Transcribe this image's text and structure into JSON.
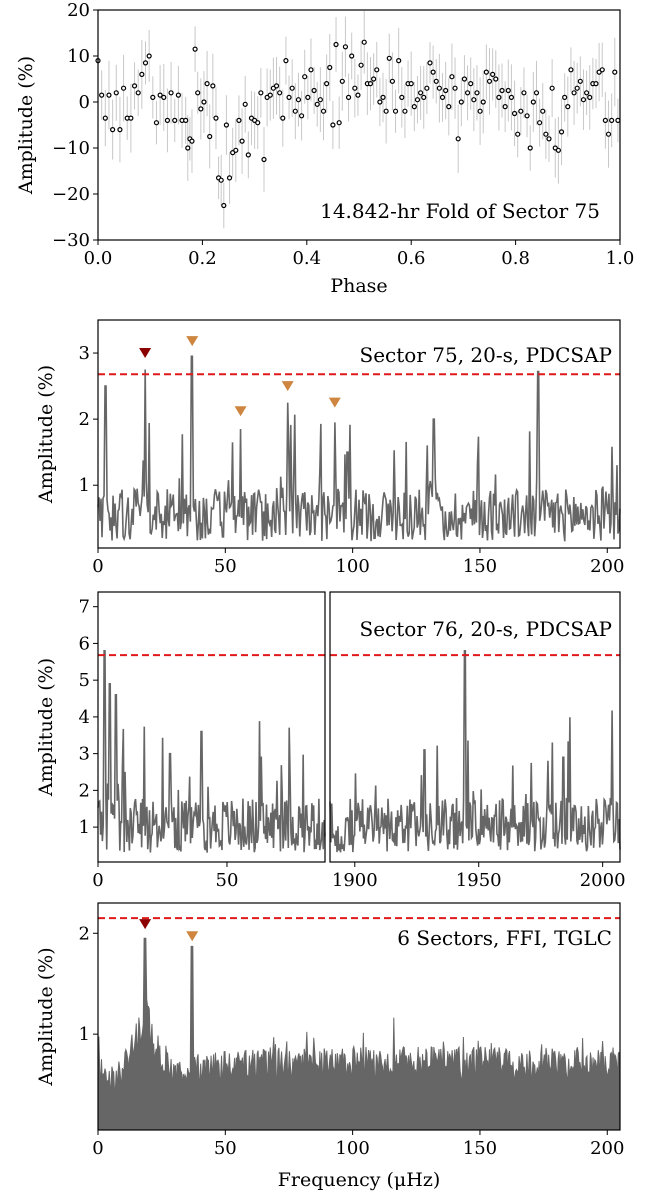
{
  "chart_data": [
    {
      "type": "scatter",
      "title": "14.842-hr Fold of Sector 75",
      "xlabel": "Phase",
      "ylabel": "Amplitude (%)",
      "xlim": [
        0.0,
        1.0
      ],
      "ylim": [
        -30,
        20
      ],
      "xticks": [
        "0.0",
        "0.2",
        "0.4",
        "0.6",
        "0.8",
        "1.0"
      ],
      "yticks": [
        "20",
        "10",
        "0",
        "−10",
        "−20",
        "−30"
      ],
      "marker": "open-circle",
      "errorbar_color": "#c8c8c8",
      "points": [
        [
          0.0,
          9
        ],
        [
          0.007,
          1.5
        ],
        [
          0.014,
          -3.5
        ],
        [
          0.021,
          1.5
        ],
        [
          0.028,
          -6
        ],
        [
          0.035,
          2
        ],
        [
          0.042,
          -6
        ],
        [
          0.049,
          3
        ],
        [
          0.056,
          -3.5
        ],
        [
          0.063,
          -3.5
        ],
        [
          0.07,
          3.5
        ],
        [
          0.077,
          2
        ],
        [
          0.084,
          6
        ],
        [
          0.091,
          8.5
        ],
        [
          0.098,
          10
        ],
        [
          0.105,
          1
        ],
        [
          0.112,
          -4.5
        ],
        [
          0.119,
          1.5
        ],
        [
          0.126,
          1
        ],
        [
          0.133,
          -4
        ],
        [
          0.14,
          2
        ],
        [
          0.147,
          -4
        ],
        [
          0.154,
          1.5
        ],
        [
          0.161,
          -4
        ],
        [
          0.168,
          -4
        ],
        [
          0.172,
          -10
        ],
        [
          0.176,
          -8
        ],
        [
          0.18,
          -8.5
        ],
        [
          0.186,
          11.5
        ],
        [
          0.191,
          2
        ],
        [
          0.197,
          -1.5
        ],
        [
          0.203,
          0
        ],
        [
          0.209,
          4
        ],
        [
          0.214,
          -7.5
        ],
        [
          0.22,
          3.5
        ],
        [
          0.226,
          -3.5
        ],
        [
          0.231,
          -16.5
        ],
        [
          0.236,
          -17
        ],
        [
          0.241,
          -22.5
        ],
        [
          0.246,
          -5
        ],
        [
          0.252,
          -16.5
        ],
        [
          0.258,
          -11
        ],
        [
          0.264,
          -10.5
        ],
        [
          0.27,
          -4
        ],
        [
          0.276,
          -8.5
        ],
        [
          0.282,
          -0.5
        ],
        [
          0.288,
          -11.5
        ],
        [
          0.294,
          -3.5
        ],
        [
          0.3,
          -4
        ],
        [
          0.306,
          -4.5
        ],
        [
          0.312,
          2
        ],
        [
          0.318,
          -12.5
        ],
        [
          0.324,
          1
        ],
        [
          0.33,
          1.5
        ],
        [
          0.336,
          3
        ],
        [
          0.342,
          3.5
        ],
        [
          0.348,
          2
        ],
        [
          0.354,
          -3.5
        ],
        [
          0.36,
          9
        ],
        [
          0.366,
          1
        ],
        [
          0.372,
          3
        ],
        [
          0.378,
          -2
        ],
        [
          0.384,
          0.5
        ],
        [
          0.39,
          -3
        ],
        [
          0.396,
          5.5
        ],
        [
          0.402,
          1
        ],
        [
          0.408,
          7
        ],
        [
          0.414,
          2.5
        ],
        [
          0.42,
          -0.5
        ],
        [
          0.426,
          0.5
        ],
        [
          0.432,
          -2
        ],
        [
          0.438,
          4
        ],
        [
          0.444,
          7.5
        ],
        [
          0.45,
          -5
        ],
        [
          0.456,
          12.5
        ],
        [
          0.462,
          -4.5
        ],
        [
          0.468,
          4.5
        ],
        [
          0.474,
          12
        ],
        [
          0.48,
          1
        ],
        [
          0.486,
          10
        ],
        [
          0.492,
          3
        ],
        [
          0.498,
          1.5
        ],
        [
          0.504,
          8
        ],
        [
          0.51,
          13
        ],
        [
          0.516,
          4
        ],
        [
          0.522,
          4
        ],
        [
          0.528,
          5
        ],
        [
          0.534,
          7
        ],
        [
          0.54,
          0
        ],
        [
          0.546,
          1
        ],
        [
          0.552,
          -2
        ],
        [
          0.558,
          9.5
        ],
        [
          0.564,
          4.5
        ],
        [
          0.57,
          -2
        ],
        [
          0.576,
          9
        ],
        [
          0.582,
          1
        ],
        [
          0.588,
          -2
        ],
        [
          0.594,
          4
        ],
        [
          0.6,
          4
        ],
        [
          0.606,
          -1
        ],
        [
          0.612,
          0.5
        ],
        [
          0.618,
          2
        ],
        [
          0.624,
          1
        ],
        [
          0.63,
          3
        ],
        [
          0.636,
          8.5
        ],
        [
          0.642,
          6.5
        ],
        [
          0.648,
          4.5
        ],
        [
          0.654,
          3
        ],
        [
          0.66,
          1
        ],
        [
          0.666,
          2.5
        ],
        [
          0.672,
          -1
        ],
        [
          0.678,
          5.5
        ],
        [
          0.684,
          3
        ],
        [
          0.69,
          -8
        ],
        [
          0.696,
          0
        ],
        [
          0.702,
          5
        ],
        [
          0.708,
          2
        ],
        [
          0.714,
          4
        ],
        [
          0.72,
          0.5
        ],
        [
          0.726,
          2
        ],
        [
          0.732,
          -2
        ],
        [
          0.738,
          0
        ],
        [
          0.744,
          6.5
        ],
        [
          0.75,
          4.5
        ],
        [
          0.756,
          6
        ],
        [
          0.762,
          5
        ],
        [
          0.768,
          1
        ],
        [
          0.774,
          2.5
        ],
        [
          0.78,
          -1
        ],
        [
          0.786,
          2.5
        ],
        [
          0.792,
          1
        ],
        [
          0.798,
          -2.5
        ],
        [
          0.804,
          -7
        ],
        [
          0.81,
          -2
        ],
        [
          0.816,
          2
        ],
        [
          0.822,
          -3
        ],
        [
          0.828,
          -10
        ],
        [
          0.834,
          0
        ],
        [
          0.84,
          2
        ],
        [
          0.846,
          -4.5
        ],
        [
          0.852,
          -2
        ],
        [
          0.858,
          -7
        ],
        [
          0.864,
          -8
        ],
        [
          0.87,
          3
        ],
        [
          0.876,
          -10
        ],
        [
          0.882,
          -10.5
        ],
        [
          0.888,
          -6.5
        ],
        [
          0.894,
          1
        ],
        [
          0.9,
          -1
        ],
        [
          0.906,
          7
        ],
        [
          0.912,
          2
        ],
        [
          0.918,
          3
        ],
        [
          0.924,
          4.5
        ],
        [
          0.93,
          0.5
        ],
        [
          0.936,
          2
        ],
        [
          0.942,
          1
        ],
        [
          0.948,
          4
        ],
        [
          0.954,
          4
        ],
        [
          0.96,
          6.5
        ],
        [
          0.966,
          7
        ],
        [
          0.972,
          -4
        ],
        [
          0.978,
          -7
        ],
        [
          0.984,
          -4
        ],
        [
          0.99,
          6.5
        ],
        [
          0.996,
          -4
        ]
      ]
    },
    {
      "type": "line",
      "label": "Sector 75, 20-s, PDCSAP",
      "xlim": [
        0,
        205
      ],
      "ylim": [
        0.05,
        3.5
      ],
      "xticks": [
        "0",
        "50",
        "100",
        "150",
        "200"
      ],
      "yticks": [
        "3",
        "2",
        "1"
      ],
      "ylabel": "Amplitude (%)",
      "threshold": 2.68,
      "peaks": [
        [
          3,
          2.5
        ],
        [
          18.5,
          2.75
        ],
        [
          37,
          2.95
        ],
        [
          56,
          1.85
        ],
        [
          74.5,
          2.25
        ],
        [
          93,
          1.95
        ],
        [
          173,
          2.72
        ],
        [
          132,
          2.0
        ],
        [
          98,
          1.5
        ]
      ],
      "markers": [
        {
          "x": 18.5,
          "y": 3.0,
          "color": "#8b0000"
        },
        {
          "x": 37,
          "y": 3.18,
          "color": "#cd853f"
        },
        {
          "x": 56,
          "y": 2.12,
          "color": "#cd853f"
        },
        {
          "x": 74.5,
          "y": 2.5,
          "color": "#cd853f"
        },
        {
          "x": 93,
          "y": 2.25,
          "color": "#cd853f"
        }
      ]
    },
    {
      "type": "line",
      "label": "Sector 76, 20-s, PDCSAP",
      "ylabel": "Amplitude (%)",
      "ylim": [
        0.05,
        7.4
      ],
      "yticks": [
        "7",
        "6",
        "5",
        "4",
        "3",
        "2",
        "1"
      ],
      "threshold": 5.68,
      "left_panel": {
        "xlim": [
          0,
          88
        ],
        "xticks": [
          "0",
          "50"
        ],
        "peaks": [
          [
            2.5,
            5.8
          ],
          [
            4.5,
            4.9
          ],
          [
            7,
            4.6
          ],
          [
            40,
            3.6
          ],
          [
            28,
            3.0
          ]
        ]
      },
      "right_panel": {
        "xlim": [
          1890,
          2007
        ],
        "xticks": [
          "1900",
          "1950",
          "2000"
        ],
        "peaks": [
          [
            1944.5,
            5.8
          ],
          [
            1928,
            3.1
          ],
          [
            1984,
            2.9
          ]
        ]
      }
    },
    {
      "type": "area",
      "label": "6 Sectors, FFI, TGLC",
      "xlabel": "Frequency (μHz)",
      "ylabel": "Amplitude (%)",
      "xlim": [
        0,
        205
      ],
      "ylim": [
        0.05,
        2.3
      ],
      "xticks": [
        "0",
        "50",
        "100",
        "150",
        "200"
      ],
      "yticks": [
        "2",
        "1"
      ],
      "threshold": 2.15,
      "peaks": [
        [
          18.5,
          1.95
        ],
        [
          37,
          1.87
        ]
      ],
      "markers": [
        {
          "x": 18.5,
          "y": 2.09,
          "color": "#8b0000"
        },
        {
          "x": 37,
          "y": 1.97,
          "color": "#cd853f"
        }
      ]
    }
  ]
}
